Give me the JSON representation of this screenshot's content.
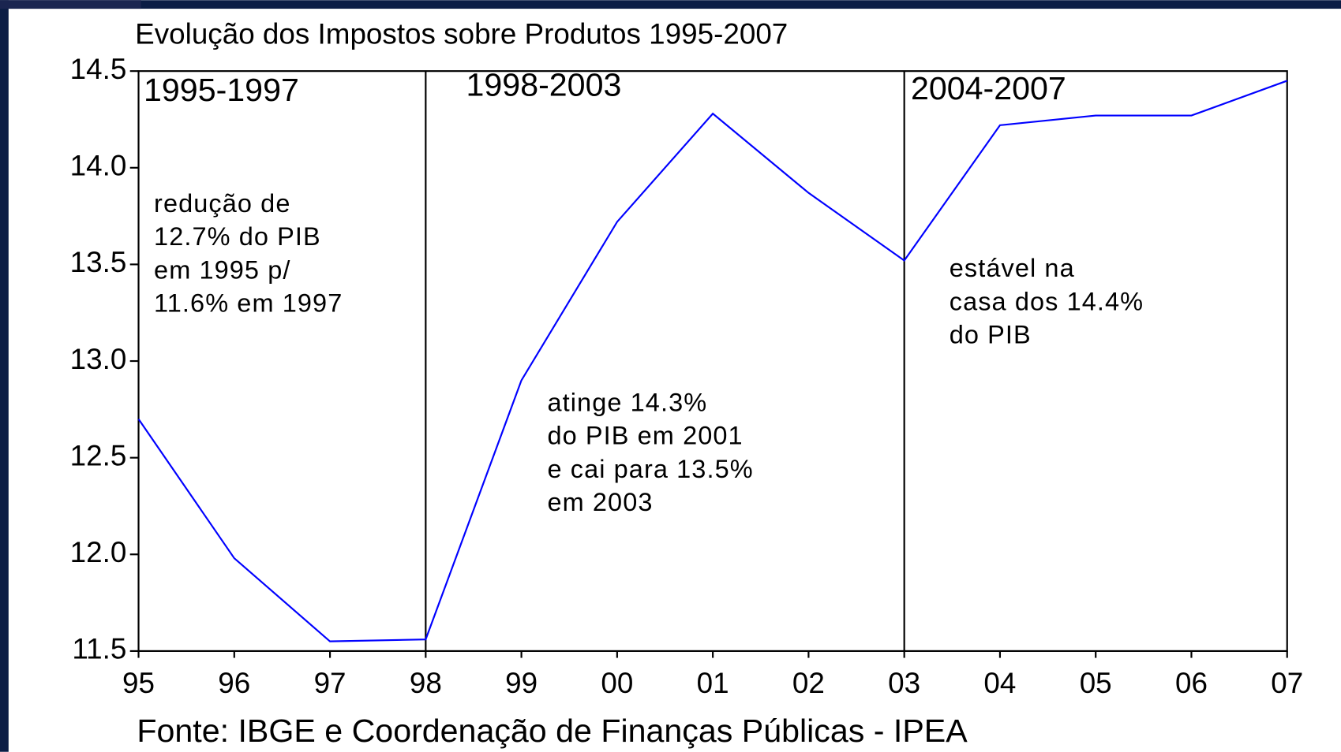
{
  "chart_data": {
    "type": "line",
    "title": "Evolução dos Impostos sobre Produtos 1995-2007",
    "source": "Fonte: IBGE e Coordenação de Finanças Públicas - IPEA",
    "categories": [
      "95",
      "96",
      "97",
      "98",
      "99",
      "00",
      "01",
      "02",
      "03",
      "04",
      "05",
      "06",
      "07"
    ],
    "series": [
      {
        "color": "#0000ff",
        "values": [
          12.7,
          11.98,
          11.55,
          11.56,
          12.9,
          13.72,
          14.28,
          13.87,
          13.52,
          14.22,
          14.27,
          14.27,
          14.45
        ]
      }
    ],
    "ylim": [
      11.5,
      14.5
    ],
    "yticks": [
      {
        "value": 14.5,
        "label": "14.5"
      },
      {
        "value": 14,
        "label": "14.0"
      },
      {
        "value": 13.5,
        "label": "13.5"
      },
      {
        "value": 13,
        "label": "13.0"
      },
      {
        "value": 12.5,
        "label": "12.5"
      },
      {
        "value": 12,
        "label": "12.0"
      },
      {
        "value": 11.5,
        "label": "11.5"
      }
    ],
    "periods": [
      {
        "label": "1995-1997",
        "from": "95"
      },
      {
        "label": "1998-2003",
        "from": "98"
      },
      {
        "label": "2004-2007",
        "from": "03"
      }
    ],
    "annotations": [
      {
        "lines": [
          "redução de",
          "12.7% do PIB",
          "em 1995 p/",
          "11.6% em 1997"
        ]
      },
      {
        "lines": [
          "atinge 14.3%",
          "do PIB em 2001",
          "e cai para 13.5%",
          "em 2003"
        ]
      },
      {
        "lines": [
          "estável na",
          "casa dos 14.4%",
          "do PIB"
        ]
      }
    ]
  }
}
